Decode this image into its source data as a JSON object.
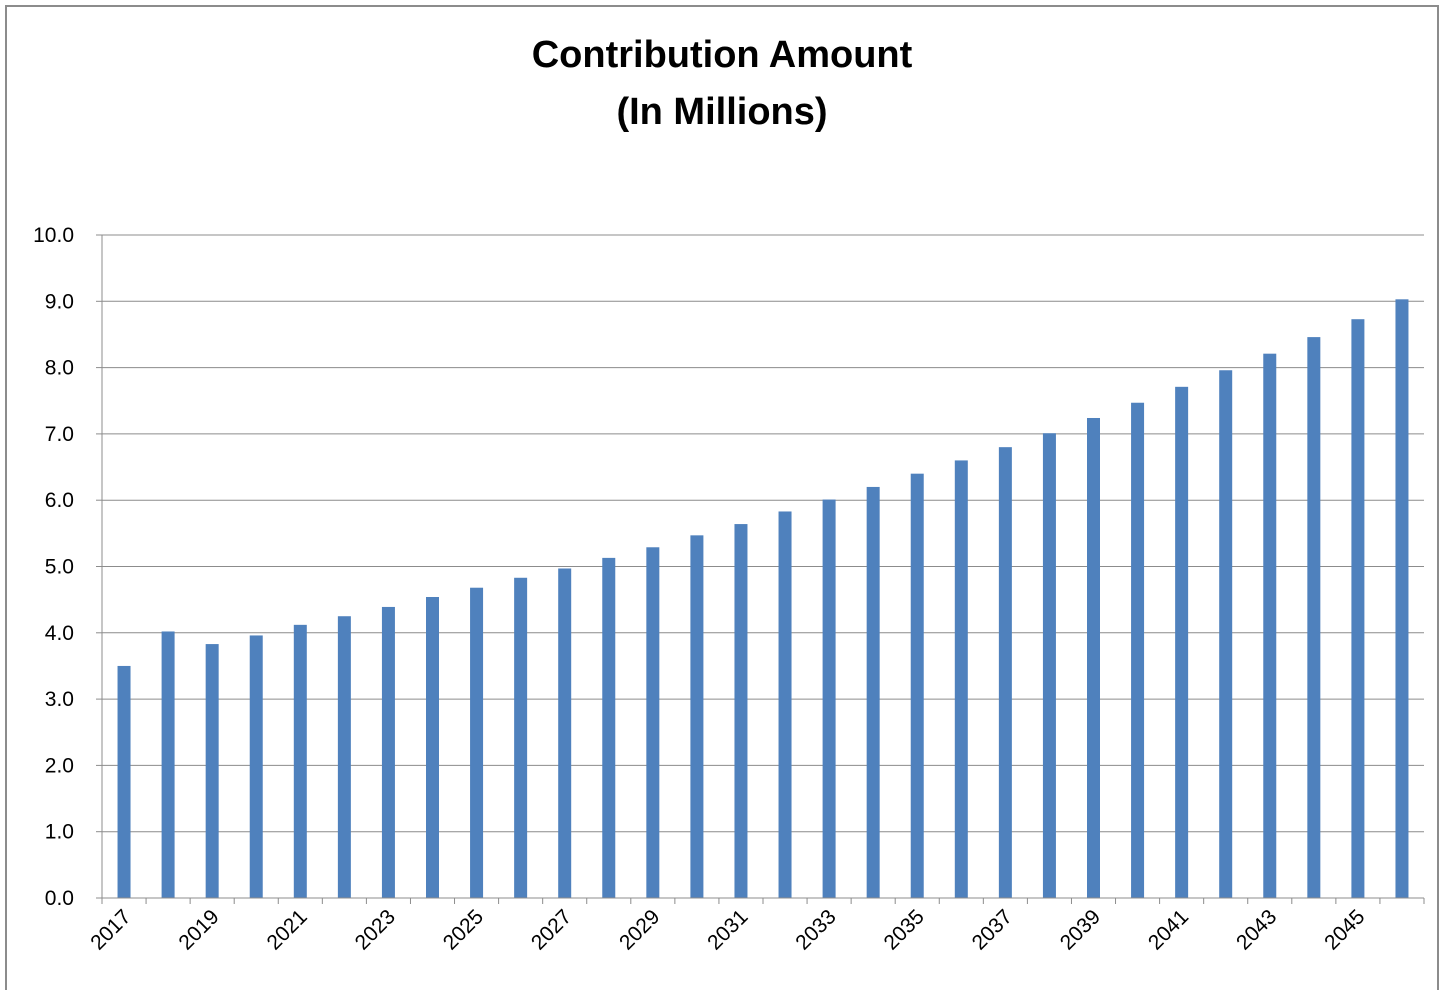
{
  "chart_data": {
    "type": "bar",
    "title_line1": "Contribution Amount",
    "title_line2": "(In Millions)",
    "categories": [
      "2017",
      "2018",
      "2019",
      "2020",
      "2021",
      "2022",
      "2023",
      "2024",
      "2025",
      "2026",
      "2027",
      "2028",
      "2029",
      "2030",
      "2031",
      "2032",
      "2033",
      "2034",
      "2035",
      "2036",
      "2037",
      "2038",
      "2039",
      "2040",
      "2041",
      "2042",
      "2043",
      "2044",
      "2045",
      "2046"
    ],
    "values": [
      3.5,
      4.02,
      3.83,
      3.96,
      4.12,
      4.25,
      4.39,
      4.54,
      4.68,
      4.83,
      4.97,
      5.13,
      5.29,
      5.47,
      5.64,
      5.83,
      6.01,
      6.2,
      6.4,
      6.6,
      6.8,
      7.01,
      7.24,
      7.47,
      7.71,
      7.96,
      8.21,
      8.46,
      8.73,
      9.03
    ],
    "x_tick_labels": [
      "2017",
      "2019",
      "2021",
      "2023",
      "2025",
      "2027",
      "2029",
      "2031",
      "2033",
      "2035",
      "2037",
      "2039",
      "2041",
      "2043",
      "2045"
    ],
    "y_tick_labels": [
      "0.0",
      "1.0",
      "2.0",
      "3.0",
      "4.0",
      "5.0",
      "6.0",
      "7.0",
      "8.0",
      "9.0",
      "10.0"
    ],
    "ylim": [
      0,
      10
    ],
    "grid": true,
    "legend": "none",
    "bar_color": "#4f81bd",
    "xlabel": "",
    "ylabel": ""
  }
}
